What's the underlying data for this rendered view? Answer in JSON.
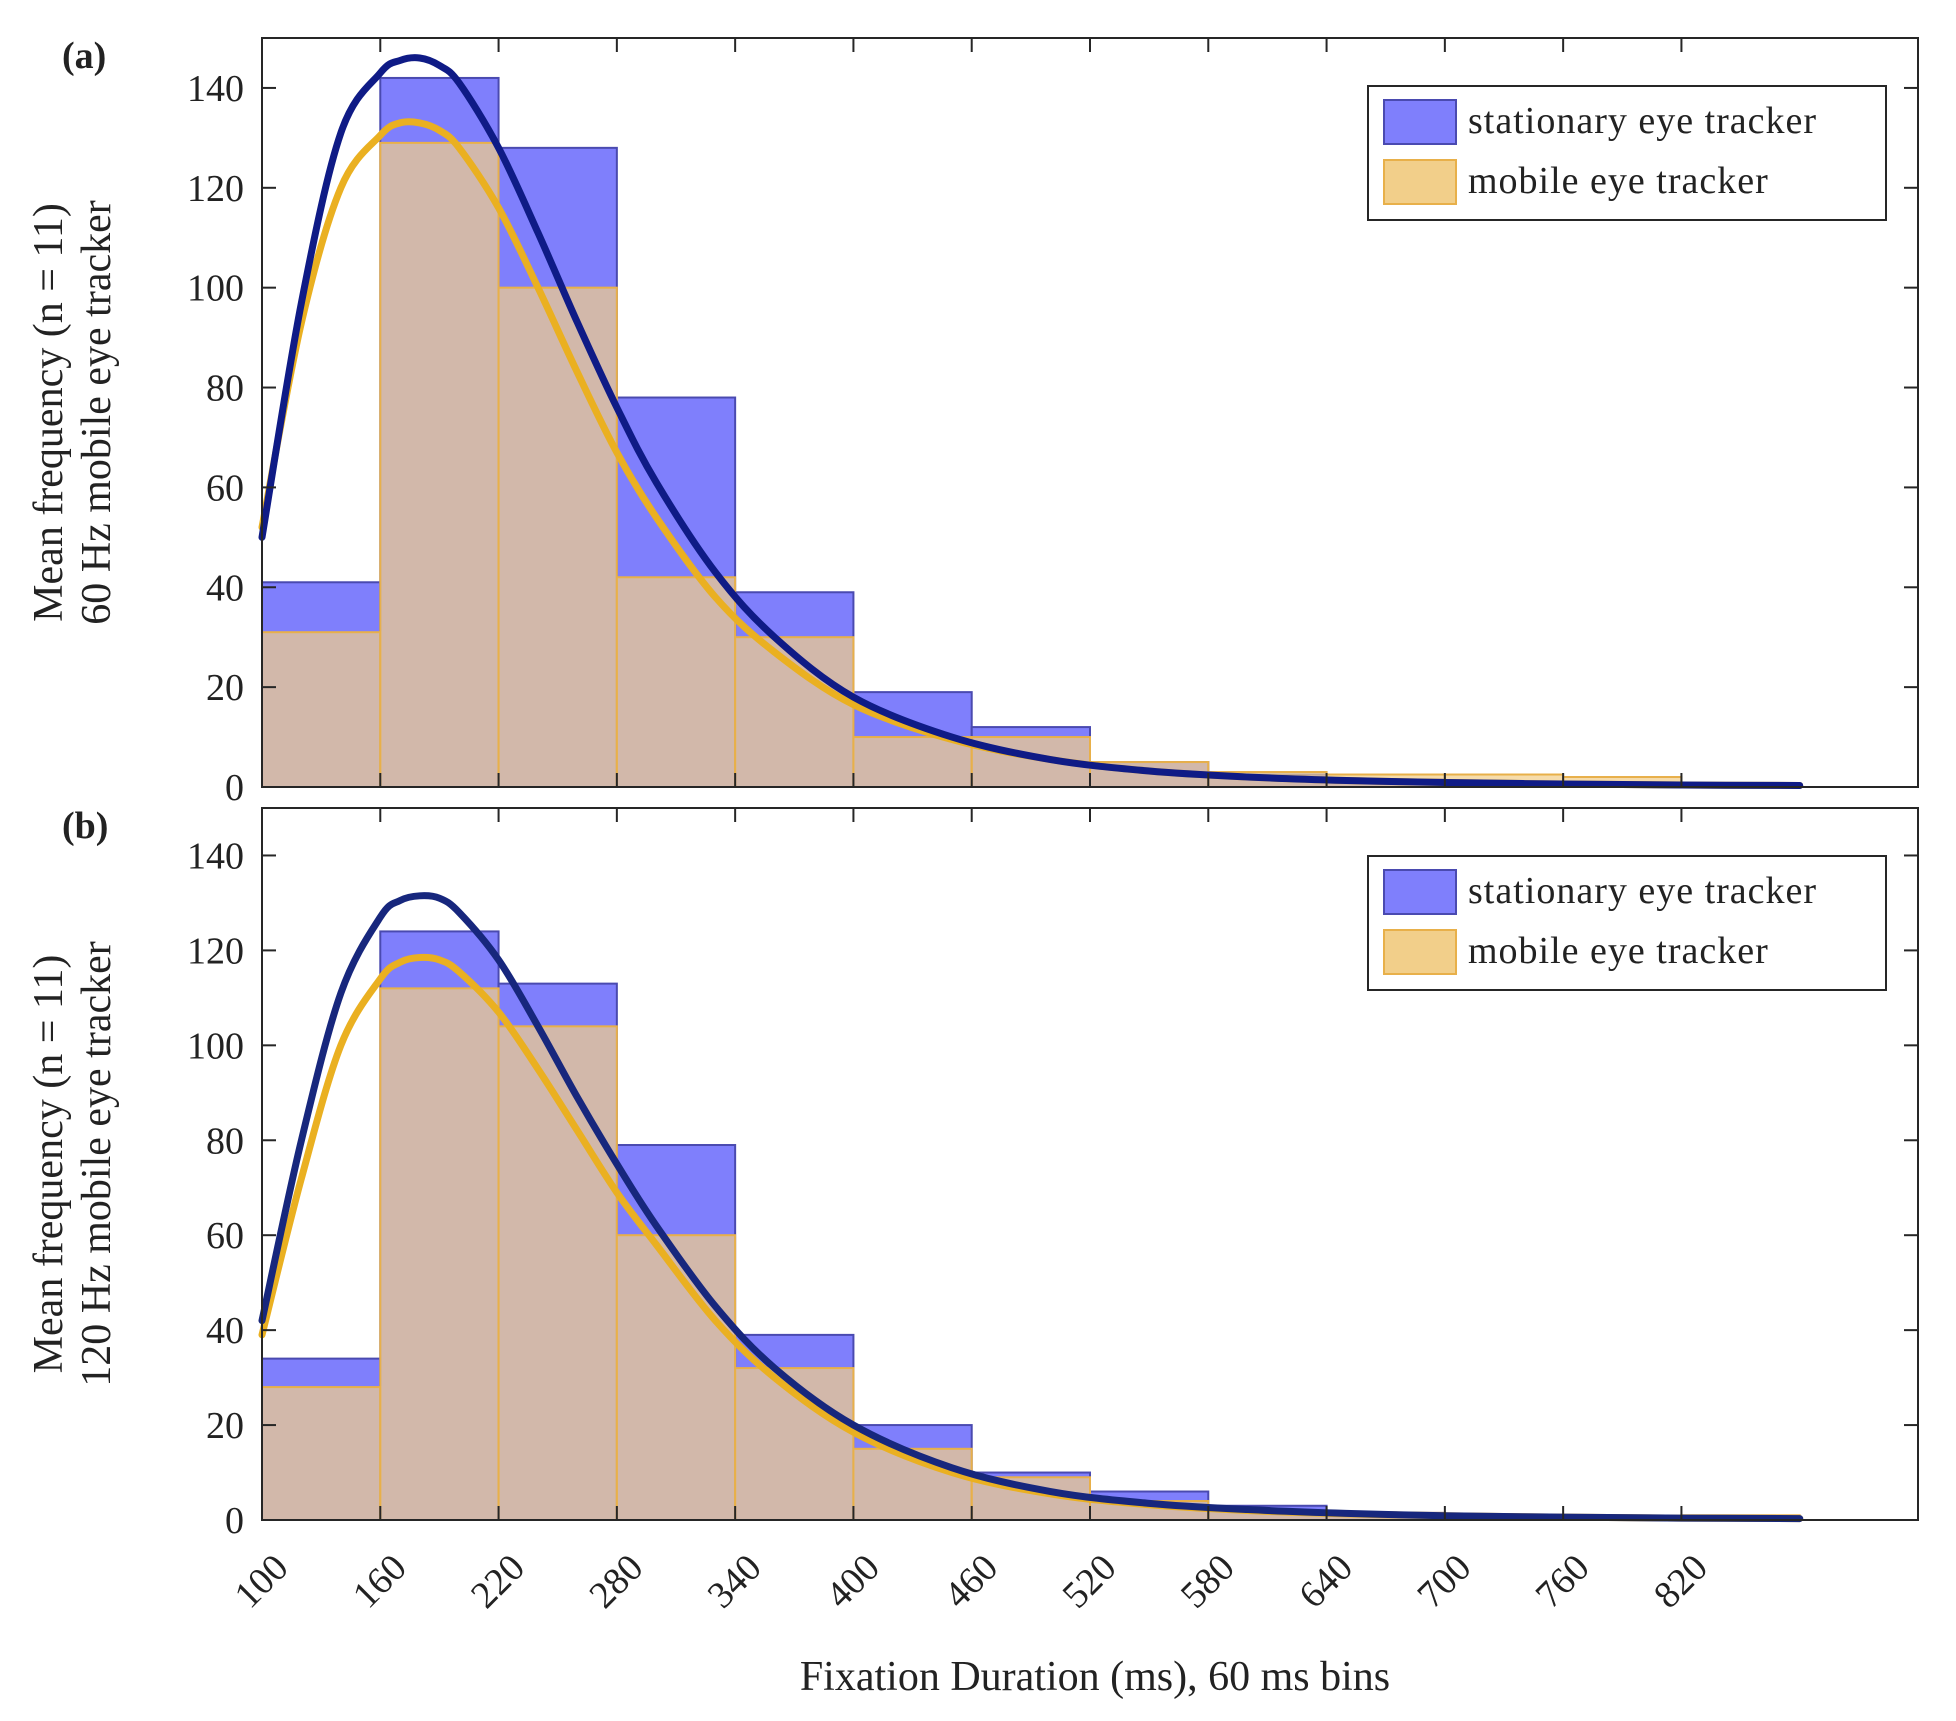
{
  "chart_data": [
    {
      "type": "bar",
      "panel_label": "(a)",
      "ylabel_lines": [
        "Mean frequency (n = 11)",
        "60 Hz mobile eye tracker"
      ],
      "xlabel": "Fixation Duration (ms), 60 ms bins",
      "xlim": [
        100,
        940
      ],
      "ylim": [
        0,
        150
      ],
      "bin_width": 60,
      "x_ticks": [
        100,
        160,
        220,
        280,
        340,
        400,
        460,
        520,
        580,
        640,
        700,
        760,
        820
      ],
      "y_ticks": [
        0,
        20,
        40,
        60,
        80,
        100,
        120,
        140
      ],
      "legend": {
        "position": "top-right",
        "entries": [
          "stationary eye tracker",
          "mobile eye tracker"
        ]
      },
      "series": [
        {
          "name": "stationary eye tracker",
          "color": "#7f7ffc",
          "edge": "#4a4ab0",
          "bin_starts": [
            100,
            160,
            220,
            280,
            340,
            400,
            460,
            520,
            580,
            640,
            700,
            760,
            820
          ],
          "values": [
            41,
            142,
            128,
            78,
            39,
            19,
            12,
            5,
            2.5,
            1.5,
            1,
            0.6,
            0.4
          ]
        },
        {
          "name": "mobile eye tracker",
          "color": "#f2cf8a",
          "edge": "#e8b04a",
          "bin_starts": [
            100,
            160,
            220,
            280,
            340,
            400,
            460,
            520,
            580,
            640,
            700,
            760,
            820
          ],
          "values": [
            31,
            129,
            100,
            42,
            30,
            10,
            10,
            5,
            3,
            2.5,
            2.5,
            2,
            0.5
          ]
        }
      ],
      "fits": [
        {
          "name": "stationary fit",
          "color": "#0f1b86",
          "x": [
            100,
            120,
            140,
            160,
            170,
            180,
            190,
            200,
            220,
            240,
            260,
            280,
            300,
            330,
            360,
            400,
            450,
            500,
            550,
            600,
            650,
            700,
            760,
            820,
            880
          ],
          "y": [
            50,
            97,
            131,
            143,
            145.5,
            146,
            144.5,
            141,
            128,
            111,
            93,
            76,
            61,
            43,
            30,
            18,
            10,
            5.5,
            3.2,
            2,
            1.3,
            0.9,
            0.6,
            0.4,
            0.3
          ]
        },
        {
          "name": "mobile fit",
          "color": "#eab021",
          "x": [
            100,
            120,
            140,
            160,
            170,
            180,
            190,
            200,
            220,
            240,
            260,
            280,
            300,
            330,
            360,
            400,
            450,
            500,
            550,
            600,
            650,
            700,
            760,
            820,
            880
          ],
          "y": [
            52,
            93,
            120,
            130.5,
            133,
            133,
            131.5,
            128,
            116,
            100,
            83,
            67,
            54,
            38,
            27,
            16.5,
            9.5,
            5.5,
            3.2,
            2,
            1.3,
            0.9,
            0.6,
            0.4,
            0.3
          ]
        }
      ]
    },
    {
      "type": "bar",
      "panel_label": "(b)",
      "ylabel_lines": [
        "Mean frequency (n = 11)",
        "120 Hz mobile eye tracker"
      ],
      "xlabel": "Fixation Duration (ms), 60 ms bins",
      "xlim": [
        100,
        940
      ],
      "ylim": [
        0,
        150
      ],
      "bin_width": 60,
      "x_ticks": [
        100,
        160,
        220,
        280,
        340,
        400,
        460,
        520,
        580,
        640,
        700,
        760,
        820
      ],
      "y_ticks": [
        0,
        20,
        40,
        60,
        80,
        100,
        120,
        140
      ],
      "legend": {
        "position": "top-right",
        "entries": [
          "stationary eye tracker",
          "mobile eye tracker"
        ]
      },
      "series": [
        {
          "name": "stationary eye tracker",
          "color": "#7f7ffc",
          "edge": "#4a4ab0",
          "bin_starts": [
            100,
            160,
            220,
            280,
            340,
            400,
            460,
            520,
            580,
            640,
            700,
            760,
            820
          ],
          "values": [
            34,
            124,
            113,
            79,
            39,
            20,
            10,
            6,
            3,
            1.5,
            1,
            0.7,
            0.5
          ]
        },
        {
          "name": "mobile eye tracker",
          "color": "#f2cf8a",
          "edge": "#e8b04a",
          "bin_starts": [
            100,
            160,
            220,
            280,
            340,
            400,
            460,
            520,
            580,
            640,
            700,
            760,
            820
          ],
          "values": [
            28,
            112,
            104,
            60,
            32,
            15,
            9,
            4,
            2,
            1.5,
            1,
            0.8,
            1
          ]
        }
      ],
      "fits": [
        {
          "name": "stationary fit",
          "color": "#17277d",
          "x": [
            100,
            120,
            140,
            160,
            170,
            180,
            190,
            200,
            220,
            240,
            260,
            280,
            300,
            330,
            360,
            400,
            450,
            500,
            550,
            600,
            650,
            700,
            760,
            820,
            880
          ],
          "y": [
            42,
            80,
            111,
            127,
            130.5,
            131.5,
            131,
            128,
            118,
            104,
            89,
            75,
            62,
            45,
            32,
            20,
            11,
            6,
            3.5,
            2.2,
            1.4,
            0.9,
            0.6,
            0.4,
            0.3
          ]
        },
        {
          "name": "mobile fit",
          "color": "#eab021",
          "x": [
            100,
            120,
            140,
            160,
            170,
            180,
            190,
            200,
            220,
            240,
            260,
            280,
            300,
            330,
            360,
            400,
            450,
            500,
            550,
            600,
            650,
            700,
            760,
            820,
            880
          ],
          "y": [
            39,
            72,
            100,
            114,
            117.5,
            118.5,
            118,
            115.5,
            107,
            95,
            82,
            69,
            58,
            42,
            30,
            18.5,
            10,
            5.5,
            3.2,
            2,
            1.3,
            0.9,
            0.6,
            0.4,
            0.3
          ]
        }
      ]
    }
  ]
}
